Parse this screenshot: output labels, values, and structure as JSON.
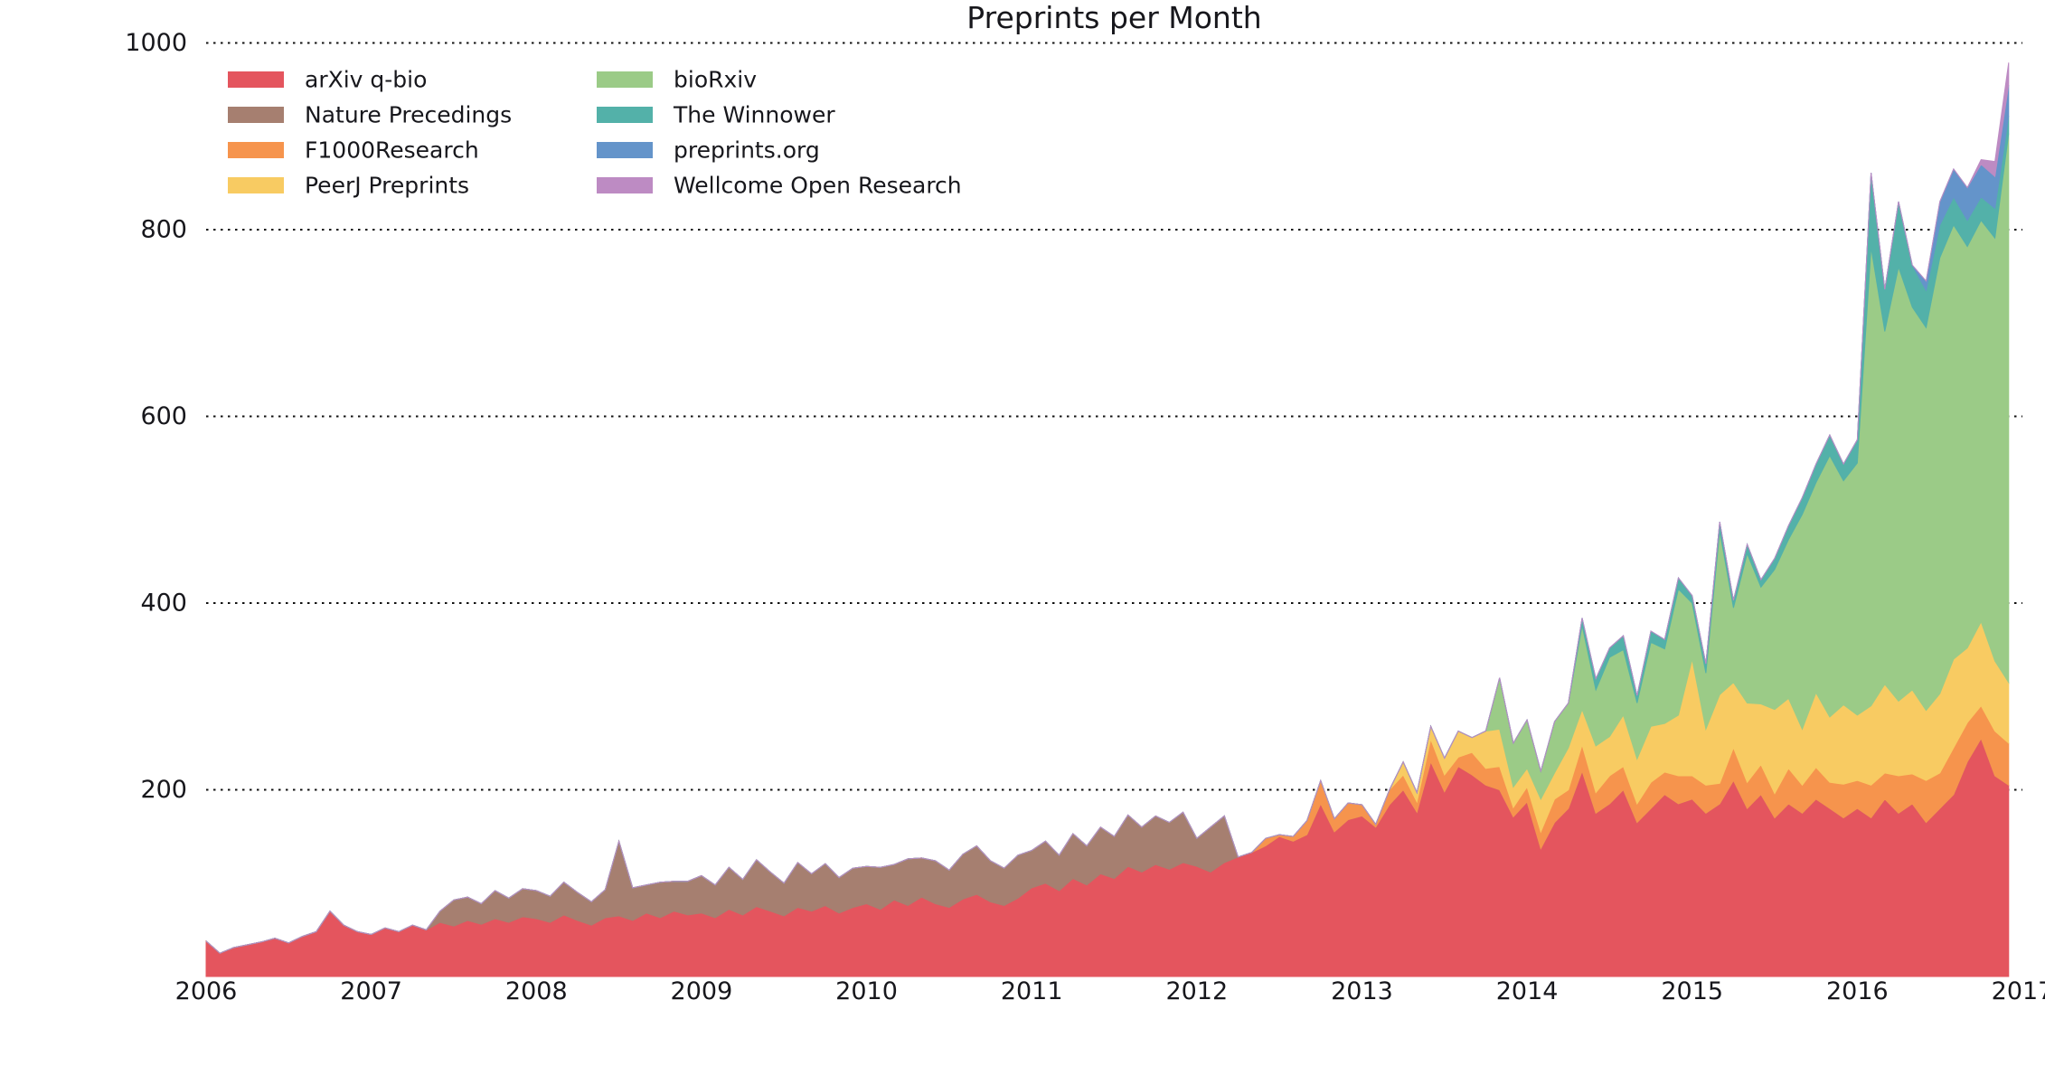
{
  "title": "Preprints per Month",
  "chart_data": {
    "type": "area",
    "stacked": true,
    "grid": "horizontal-dotted",
    "grid_color": "#111111",
    "legend_position": "upper-left-two-columns",
    "x_start_year": 2006,
    "x_months": 132,
    "x_tick_years": [
      "2006",
      "2007",
      "2008",
      "2009",
      "2010",
      "2011",
      "2012",
      "2013",
      "2014",
      "2015",
      "2016",
      "2017"
    ],
    "y_ticks": [
      200,
      400,
      600,
      800,
      1000
    ],
    "ylim": [
      0,
      1000
    ],
    "series": [
      {
        "name": "arXiv q-bio",
        "color": "#e4555e",
        "values": [
          38,
          25,
          31,
          34,
          37,
          41,
          36,
          43,
          48,
          70,
          55,
          48,
          45,
          52,
          48,
          55,
          50,
          58,
          54,
          60,
          56,
          62,
          58,
          64,
          62,
          58,
          66,
          60,
          55,
          63,
          65,
          60,
          68,
          63,
          70,
          66,
          68,
          63,
          72,
          66,
          75,
          70,
          65,
          74,
          70,
          76,
          68,
          74,
          78,
          72,
          82,
          76,
          85,
          78,
          74,
          83,
          88,
          80,
          76,
          84,
          95,
          100,
          92,
          105,
          98,
          110,
          105,
          118,
          112,
          120,
          115,
          122,
          118,
          112,
          122,
          128,
          133,
          140,
          150,
          145,
          152,
          185,
          155,
          168,
          172,
          160,
          184,
          200,
          176,
          230,
          198,
          225,
          216,
          205,
          200,
          171,
          187,
          137,
          165,
          180,
          220,
          175,
          185,
          200,
          165,
          180,
          195,
          185,
          190,
          175,
          185,
          210,
          180,
          195,
          170,
          185,
          175,
          190,
          180,
          170,
          180,
          170,
          190,
          175,
          185,
          165,
          180,
          195,
          230,
          255,
          215,
          205
        ]
      },
      {
        "name": "Nature Precedings",
        "color": "#a67f70",
        "values": [
          0,
          0,
          0,
          0,
          0,
          0,
          0,
          0,
          0,
          0,
          0,
          0,
          0,
          0,
          0,
          0,
          0,
          12,
          28,
          25,
          22,
          30,
          26,
          30,
          30,
          28,
          35,
          30,
          25,
          30,
          80,
          35,
          30,
          38,
          32,
          36,
          40,
          35,
          45,
          38,
          50,
          42,
          35,
          48,
          40,
          45,
          38,
          42,
          40,
          45,
          38,
          50,
          42,
          46,
          40,
          48,
          52,
          44,
          40,
          46,
          40,
          45,
          38,
          48,
          42,
          50,
          45,
          55,
          48,
          52,
          50,
          54,
          30,
          48,
          50,
          0,
          0,
          0,
          0,
          0,
          0,
          0,
          0,
          0,
          0,
          0,
          0,
          0,
          0,
          0,
          0,
          0,
          0,
          0,
          0,
          0,
          0,
          0,
          0,
          0,
          0,
          0,
          0,
          0,
          0,
          0,
          0,
          0,
          0,
          0,
          0,
          0,
          0,
          0,
          0,
          0,
          0,
          0,
          0,
          0,
          0,
          0,
          0,
          0,
          0,
          0,
          0,
          0,
          0,
          0,
          0,
          0
        ]
      },
      {
        "name": "F1000Research",
        "color": "#f6944d",
        "values": [
          0,
          0,
          0,
          0,
          0,
          0,
          0,
          0,
          0,
          0,
          0,
          0,
          0,
          0,
          0,
          0,
          0,
          0,
          0,
          0,
          0,
          0,
          0,
          0,
          0,
          0,
          0,
          0,
          0,
          0,
          0,
          0,
          0,
          0,
          0,
          0,
          0,
          0,
          0,
          0,
          0,
          0,
          0,
          0,
          0,
          0,
          0,
          0,
          0,
          0,
          0,
          0,
          0,
          0,
          0,
          0,
          0,
          0,
          0,
          0,
          0,
          0,
          0,
          0,
          0,
          0,
          0,
          0,
          0,
          0,
          0,
          0,
          0,
          0,
          0,
          0,
          0,
          8,
          2,
          5,
          15,
          25,
          14,
          18,
          12,
          3,
          16,
          16,
          11,
          24,
          18,
          10,
          24,
          18,
          25,
          10,
          16,
          18,
          25,
          20,
          28,
          22,
          30,
          25,
          20,
          28,
          24,
          30,
          25,
          30,
          22,
          35,
          28,
          32,
          26,
          38,
          30,
          34,
          28,
          36,
          30,
          35,
          28,
          40,
          32,
          45,
          38,
          50,
          42,
          35,
          48,
          45
        ]
      },
      {
        "name": "PeerJ Preprints",
        "color": "#f8cb62",
        "values": [
          0,
          0,
          0,
          0,
          0,
          0,
          0,
          0,
          0,
          0,
          0,
          0,
          0,
          0,
          0,
          0,
          0,
          0,
          0,
          0,
          0,
          0,
          0,
          0,
          0,
          0,
          0,
          0,
          0,
          0,
          0,
          0,
          0,
          0,
          0,
          0,
          0,
          0,
          0,
          0,
          0,
          0,
          0,
          0,
          0,
          0,
          0,
          0,
          0,
          0,
          0,
          0,
          0,
          0,
          0,
          0,
          0,
          0,
          0,
          0,
          0,
          0,
          0,
          0,
          0,
          0,
          0,
          0,
          0,
          0,
          0,
          0,
          0,
          0,
          0,
          0,
          0,
          0,
          0,
          0,
          0,
          0,
          0,
          0,
          0,
          0,
          0,
          14,
          10,
          14,
          18,
          28,
          16,
          40,
          40,
          22,
          20,
          35,
          28,
          45,
          38,
          50,
          42,
          55,
          48,
          60,
          52,
          65,
          125,
          60,
          95,
          70,
          85,
          65,
          90,
          75,
          60,
          80,
          70,
          85,
          70,
          85,
          95,
          80,
          90,
          75,
          85,
          95,
          80,
          90,
          75,
          65
        ]
      },
      {
        "name": "bioRxiv",
        "color": "#9bcb87",
        "values": [
          0,
          0,
          0,
          0,
          0,
          0,
          0,
          0,
          0,
          0,
          0,
          0,
          0,
          0,
          0,
          0,
          0,
          0,
          0,
          0,
          0,
          0,
          0,
          0,
          0,
          0,
          0,
          0,
          0,
          0,
          0,
          0,
          0,
          0,
          0,
          0,
          0,
          0,
          0,
          0,
          0,
          0,
          0,
          0,
          0,
          0,
          0,
          0,
          0,
          0,
          0,
          0,
          0,
          0,
          0,
          0,
          0,
          0,
          0,
          0,
          0,
          0,
          0,
          0,
          0,
          0,
          0,
          0,
          0,
          0,
          0,
          0,
          0,
          0,
          0,
          0,
          0,
          0,
          0,
          0,
          0,
          0,
          0,
          0,
          0,
          0,
          0,
          0,
          0,
          0,
          0,
          0,
          0,
          0,
          55,
          47,
          52,
          30,
          55,
          48,
          90,
          60,
          85,
          70,
          60,
          90,
          80,
          135,
          60,
          60,
          175,
          80,
          160,
          125,
          150,
          170,
          230,
          225,
          280,
          240,
          270,
          491,
          378,
          465,
          410,
          410,
          467,
          465,
          430,
          430,
          453,
          588
        ]
      },
      {
        "name": "The Winnower",
        "color": "#53b1a9",
        "values": [
          0,
          0,
          0,
          0,
          0,
          0,
          0,
          0,
          0,
          0,
          0,
          0,
          0,
          0,
          0,
          0,
          0,
          0,
          0,
          0,
          0,
          0,
          0,
          0,
          0,
          0,
          0,
          0,
          0,
          0,
          0,
          0,
          0,
          0,
          0,
          0,
          0,
          0,
          0,
          0,
          0,
          0,
          0,
          0,
          0,
          0,
          0,
          0,
          0,
          0,
          0,
          0,
          0,
          0,
          0,
          0,
          0,
          0,
          0,
          0,
          0,
          0,
          0,
          0,
          0,
          0,
          0,
          0,
          0,
          0,
          0,
          0,
          0,
          0,
          0,
          0,
          0,
          0,
          0,
          0,
          0,
          0,
          0,
          0,
          0,
          0,
          0,
          0,
          0,
          0,
          0,
          0,
          0,
          0,
          0,
          0,
          0,
          0,
          0,
          0,
          8,
          12,
          10,
          15,
          8,
          12,
          10,
          12,
          8,
          10,
          10,
          8,
          10,
          8,
          12,
          15,
          18,
          20,
          22,
          18,
          25,
          80,
          45,
          70,
          45,
          40,
          35,
          30,
          28,
          25,
          32,
          19
        ]
      },
      {
        "name": "preprints.org",
        "color": "#6494ca",
        "values": [
          0,
          0,
          0,
          0,
          0,
          0,
          0,
          0,
          0,
          0,
          0,
          0,
          0,
          0,
          0,
          0,
          0,
          0,
          0,
          0,
          0,
          0,
          0,
          0,
          0,
          0,
          0,
          0,
          0,
          0,
          0,
          0,
          0,
          0,
          0,
          0,
          0,
          0,
          0,
          0,
          0,
          0,
          0,
          0,
          0,
          0,
          0,
          0,
          0,
          0,
          0,
          0,
          0,
          0,
          0,
          0,
          0,
          0,
          0,
          0,
          0,
          0,
          0,
          0,
          0,
          0,
          0,
          0,
          0,
          0,
          0,
          0,
          0,
          0,
          0,
          0,
          0,
          0,
          0,
          0,
          0,
          0,
          0,
          0,
          0,
          0,
          0,
          0,
          0,
          0,
          0,
          0,
          0,
          0,
          0,
          0,
          0,
          0,
          0,
          0,
          0,
          0,
          0,
          0,
          0,
          0,
          0,
          0,
          0,
          0,
          0,
          0,
          0,
          0,
          0,
          0,
          0,
          0,
          0,
          0,
          0,
          0,
          0,
          0,
          0,
          10,
          25,
          30,
          35,
          35,
          34,
          33
        ]
      },
      {
        "name": "Wellcome Open Research",
        "color": "#bd8bc3",
        "values": [
          0,
          0,
          0,
          0,
          0,
          0,
          0,
          0,
          0,
          0,
          0,
          0,
          0,
          0,
          0,
          0,
          0,
          0,
          0,
          0,
          0,
          0,
          0,
          0,
          0,
          0,
          0,
          0,
          0,
          0,
          0,
          0,
          0,
          0,
          0,
          0,
          0,
          0,
          0,
          0,
          0,
          0,
          0,
          0,
          0,
          0,
          0,
          0,
          0,
          0,
          0,
          0,
          0,
          0,
          0,
          0,
          0,
          0,
          0,
          0,
          0,
          0,
          0,
          0,
          0,
          0,
          0,
          0,
          0,
          0,
          0,
          0,
          0,
          0,
          0,
          0,
          0,
          0,
          0,
          0,
          0,
          0,
          0,
          0,
          0,
          0,
          0,
          0,
          0,
          0,
          0,
          0,
          0,
          0,
          0,
          0,
          0,
          0,
          0,
          0,
          0,
          0,
          0,
          0,
          0,
          0,
          0,
          0,
          0,
          0,
          0,
          0,
          0,
          0,
          0,
          0,
          0,
          0,
          0,
          0,
          0,
          0,
          0,
          0,
          0,
          0,
          0,
          0,
          0,
          5,
          16,
          24
        ]
      }
    ]
  },
  "legend": {
    "columns": [
      [
        "arXiv q-bio",
        "Nature Precedings",
        "F1000Research",
        "PeerJ Preprints"
      ],
      [
        "bioRxiv",
        "The Winnower",
        "preprints.org",
        "Wellcome Open Research"
      ]
    ]
  }
}
